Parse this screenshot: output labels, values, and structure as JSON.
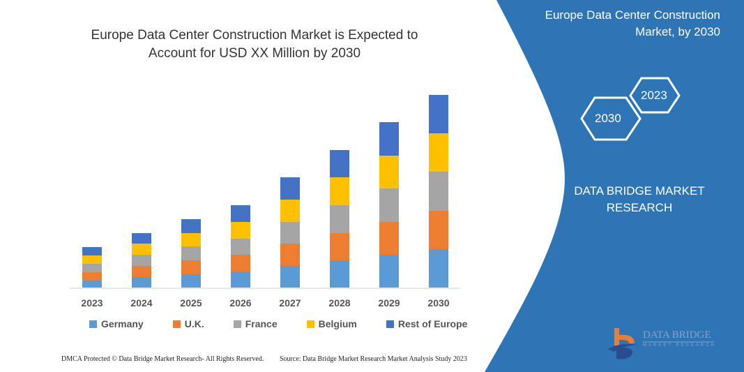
{
  "title": "Europe Data Center Construction Market is Expected to Account for USD XX Million by 2030",
  "side_panel": {
    "title": "Europe Data Center Construction Market, by 2030",
    "hex_years": [
      "2030",
      "2023"
    ],
    "brand": "DATA BRIDGE MARKET RESEARCH",
    "logo_text": "DATA BRIDGE",
    "logo_sub": "MARKET RESEARCH",
    "color": "#2e75b6"
  },
  "footer": {
    "left": "DMCA Protected © Data Bridge Market Research-  All Rights Reserved.",
    "right": "Source: Data Bridge Market Research  Market Analysis Study 2023"
  },
  "chart_data": {
    "type": "bar",
    "stacked": true,
    "title": "Europe Data Center Construction Market is Expected to Account for USD XX Million by 2030",
    "categories": [
      "2023",
      "2024",
      "2025",
      "2026",
      "2027",
      "2028",
      "2029",
      "2030"
    ],
    "series": [
      {
        "name": "Germany",
        "color": "#5b9bd5",
        "values": [
          10,
          15,
          19,
          23,
          31,
          39,
          47,
          55
        ]
      },
      {
        "name": "U.K.",
        "color": "#ed7d31",
        "values": [
          12,
          16,
          20,
          24,
          32,
          39,
          47,
          55
        ]
      },
      {
        "name": "France",
        "color": "#a5a5a5",
        "values": [
          12,
          16,
          20,
          23,
          31,
          40,
          48,
          56
        ]
      },
      {
        "name": "Belgium",
        "color": "#ffc000",
        "values": [
          12,
          16,
          19,
          24,
          32,
          40,
          47,
          55
        ]
      },
      {
        "name": "Rest of Europe",
        "color": "#4472c4",
        "values": [
          12,
          15,
          20,
          24,
          32,
          39,
          48,
          55
        ]
      }
    ],
    "value_axis_shown": false,
    "grid": false,
    "legend_position": "bottom"
  }
}
